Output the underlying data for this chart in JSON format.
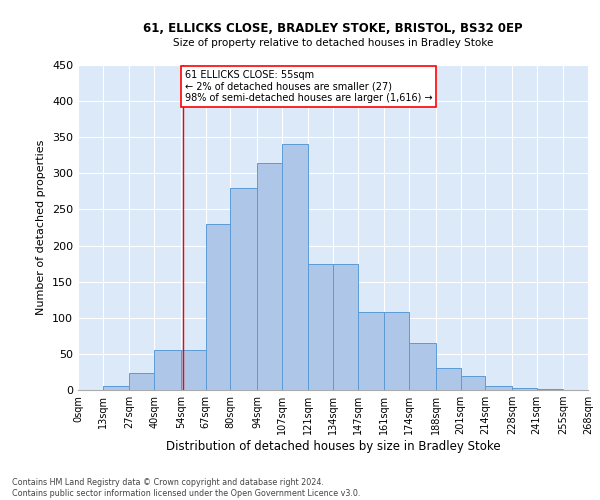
{
  "title1": "61, ELLICKS CLOSE, BRADLEY STOKE, BRISTOL, BS32 0EP",
  "title2": "Size of property relative to detached houses in Bradley Stoke",
  "xlabel": "Distribution of detached houses by size in Bradley Stoke",
  "ylabel": "Number of detached properties",
  "bin_labels": [
    "0sqm",
    "13sqm",
    "27sqm",
    "40sqm",
    "54sqm",
    "67sqm",
    "80sqm",
    "94sqm",
    "107sqm",
    "121sqm",
    "134sqm",
    "147sqm",
    "161sqm",
    "174sqm",
    "188sqm",
    "201sqm",
    "214sqm",
    "228sqm",
    "241sqm",
    "255sqm",
    "268sqm"
  ],
  "bin_edges": [
    0,
    13,
    27,
    40,
    54,
    67,
    80,
    94,
    107,
    121,
    134,
    147,
    161,
    174,
    188,
    201,
    214,
    228,
    241,
    255,
    268
  ],
  "bar_heights": [
    0,
    5,
    23,
    55,
    55,
    230,
    280,
    315,
    340,
    175,
    175,
    108,
    108,
    65,
    30,
    20,
    6,
    3,
    2,
    0
  ],
  "bar_color": "#aec6e8",
  "bar_edge_color": "#5b9bd5",
  "property_line_x": 55,
  "annotation_text": "61 ELLICKS CLOSE: 55sqm\n← 2% of detached houses are smaller (27)\n98% of semi-detached houses are larger (1,616) →",
  "annotation_box_color": "white",
  "annotation_box_edge": "red",
  "vline_color": "red",
  "background_color": "#dce9f8",
  "grid_color": "white",
  "footer": "Contains HM Land Registry data © Crown copyright and database right 2024.\nContains public sector information licensed under the Open Government Licence v3.0.",
  "ylim": [
    0,
    450
  ],
  "yticks": [
    0,
    50,
    100,
    150,
    200,
    250,
    300,
    350,
    400,
    450
  ]
}
